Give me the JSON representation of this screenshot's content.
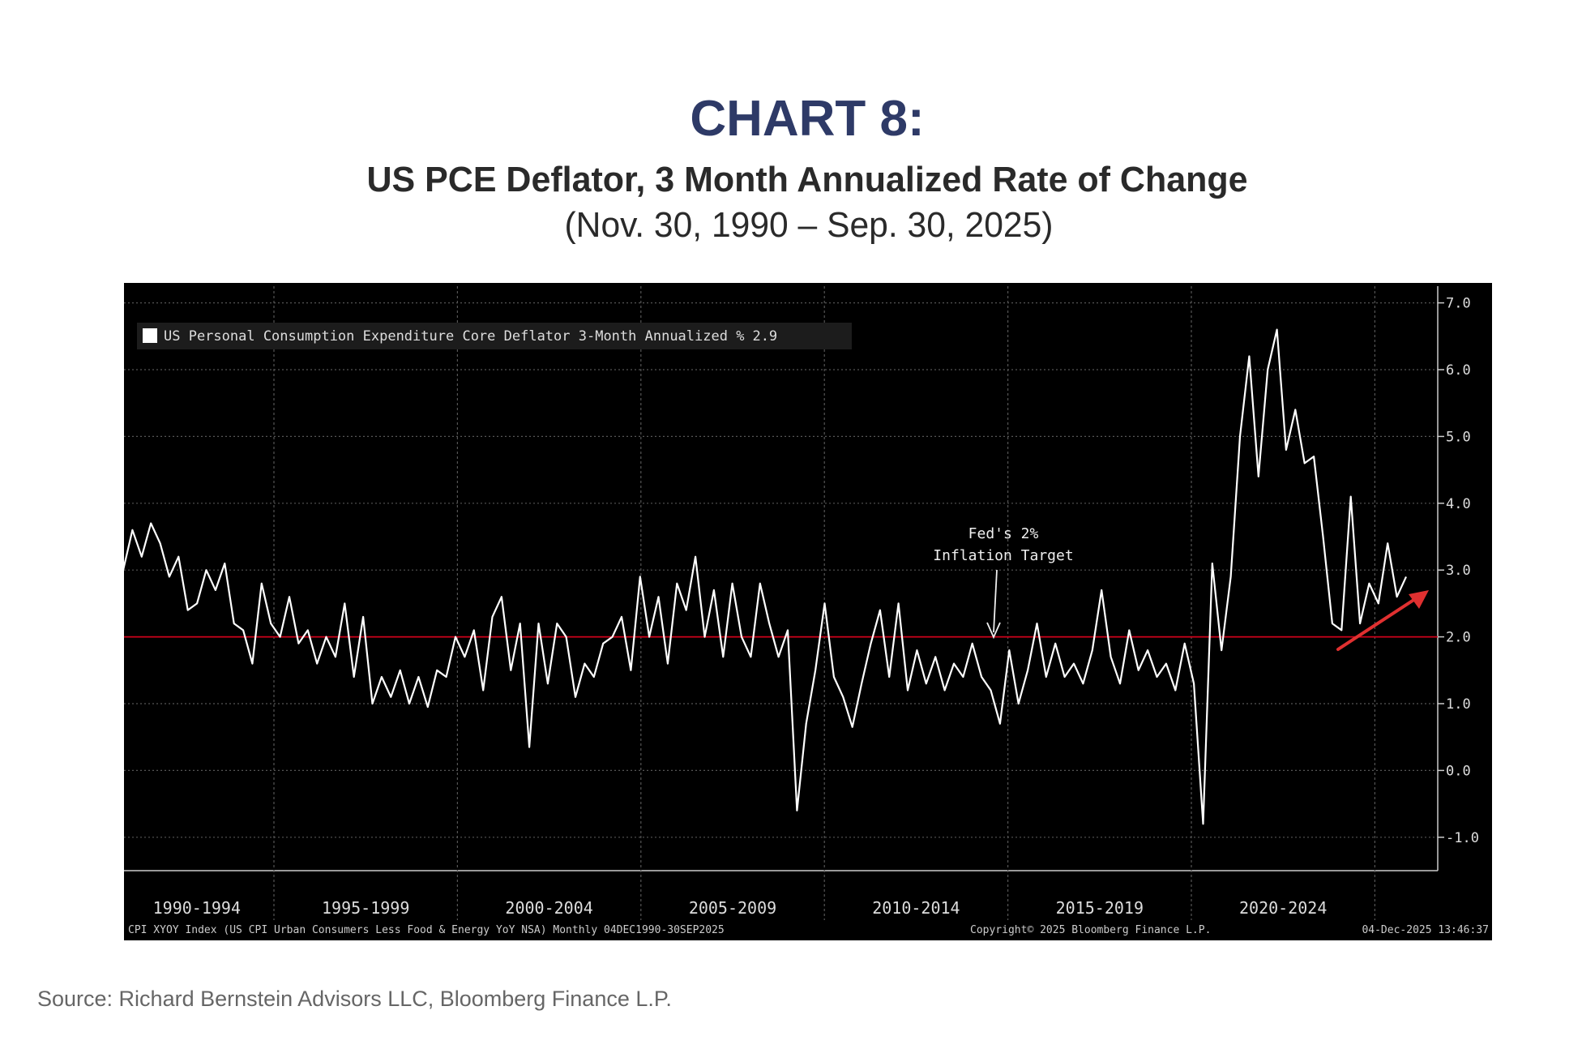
{
  "chart_data": {
    "type": "line",
    "title": "CHART 8:",
    "subtitle": "US PCE Deflator, 3 Month Annualized Rate of Change",
    "date_range": "(Nov. 30, 1990 – Sep. 30, 2025)",
    "x_period_labels": [
      "1990-1994",
      "1995-1999",
      "2000-2004",
      "2005-2009",
      "2010-2014",
      "2015-2019",
      "2020-2024"
    ],
    "series": [
      {
        "name": "US Personal Consumption Expenditure Core Deflator 3-Month Annualized %",
        "legend_value": 2.9,
        "color": "#ffffff",
        "values": [
          3.0,
          3.6,
          3.2,
          3.7,
          3.4,
          2.9,
          3.2,
          2.4,
          2.5,
          3.0,
          2.7,
          3.1,
          2.2,
          2.1,
          1.6,
          2.8,
          2.2,
          2.0,
          2.6,
          1.9,
          2.1,
          1.6,
          2.0,
          1.7,
          2.5,
          1.4,
          2.3,
          1.0,
          1.4,
          1.1,
          1.5,
          1.0,
          1.4,
          0.95,
          1.5,
          1.4,
          2.0,
          1.7,
          2.1,
          1.2,
          2.3,
          2.6,
          1.5,
          2.2,
          0.35,
          2.2,
          1.3,
          2.2,
          2.0,
          1.1,
          1.6,
          1.4,
          1.9,
          2.0,
          2.3,
          1.5,
          2.9,
          2.0,
          2.6,
          1.6,
          2.8,
          2.4,
          3.2,
          2.0,
          2.7,
          1.7,
          2.8,
          2.0,
          1.7,
          2.8,
          2.2,
          1.7,
          2.1,
          -0.6,
          0.7,
          1.5,
          2.5,
          1.4,
          1.1,
          0.65,
          1.3,
          1.9,
          2.4,
          1.4,
          2.5,
          1.2,
          1.8,
          1.3,
          1.7,
          1.2,
          1.6,
          1.4,
          1.9,
          1.4,
          1.2,
          0.7,
          1.8,
          1.0,
          1.5,
          2.2,
          1.4,
          1.9,
          1.4,
          1.6,
          1.3,
          1.8,
          2.7,
          1.7,
          1.3,
          2.1,
          1.5,
          1.8,
          1.4,
          1.6,
          1.2,
          1.9,
          1.3,
          -0.8,
          3.1,
          1.8,
          2.9,
          5.0,
          6.2,
          4.4,
          6.0,
          6.6,
          4.8,
          5.4,
          4.6,
          4.7,
          3.5,
          2.2,
          2.1,
          4.1,
          2.2,
          2.8,
          2.5,
          3.4,
          2.6,
          2.9
        ]
      }
    ],
    "reference_line": {
      "value": 2,
      "color": "#d0021b"
    },
    "annotation_lines": [
      "Fed's 2%",
      "Inflation Target"
    ],
    "ylim": [
      -1.5,
      7.25
    ],
    "yticks": [
      {
        "value": -1,
        "label": "-1.0"
      },
      {
        "value": 0,
        "label": "0.0"
      },
      {
        "value": 1,
        "label": "1.0"
      },
      {
        "value": 2,
        "label": "2.0"
      },
      {
        "value": 3,
        "label": "3.0"
      },
      {
        "value": 4,
        "label": "4.0"
      },
      {
        "value": 5,
        "label": "5.0"
      },
      {
        "value": 6,
        "label": "6.0"
      },
      {
        "value": 7,
        "label": "7.0"
      }
    ],
    "grid": true,
    "footer_left": "CPI XYOY Index (US CPI Urban Consumers Less Food & Energy YoY NSA) Monthly 04DEC1990-30SEP2025",
    "footer_copyright": "Copyright© 2025 Bloomberg Finance L.P.",
    "footer_timestamp": "04-Dec-2025 13:46:37",
    "source": "Source: Richard Bernstein Advisors LLC, Bloomberg Finance L.P."
  }
}
